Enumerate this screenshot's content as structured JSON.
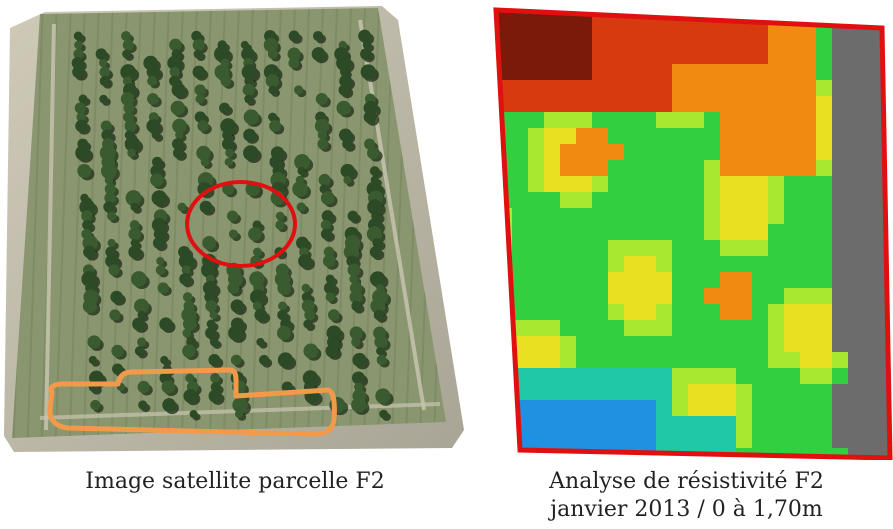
{
  "left_panel": {
    "caption": "Image satellite parcelle F2",
    "colors": {
      "field": "#8f9a72",
      "field_dark": "#6f7c54",
      "border_light": "#d8d4c4",
      "tree": "#2c4a26",
      "tree_shadow": "#15240f",
      "circle": "#e01010",
      "outline": "#f39a4a"
    },
    "icons": [
      "satellite-image",
      "red-circle-marker",
      "orange-outline-marker"
    ]
  },
  "right_panel": {
    "caption_line1": "Analyse de résistivité F2",
    "caption_line2": "janvier 2013 / 0 à 1,70m",
    "colors": {
      "border": "#e01010",
      "dark_red": "#7a1a0a",
      "red": "#d83a10",
      "orange": "#f08a10",
      "yellow": "#e8e020",
      "light_green": "#a8e830",
      "green": "#30d040",
      "cyan": "#20c8a8",
      "blue": "#2090e0",
      "gray": "#6c6c6c"
    },
    "icons": [
      "resistivity-map"
    ]
  }
}
